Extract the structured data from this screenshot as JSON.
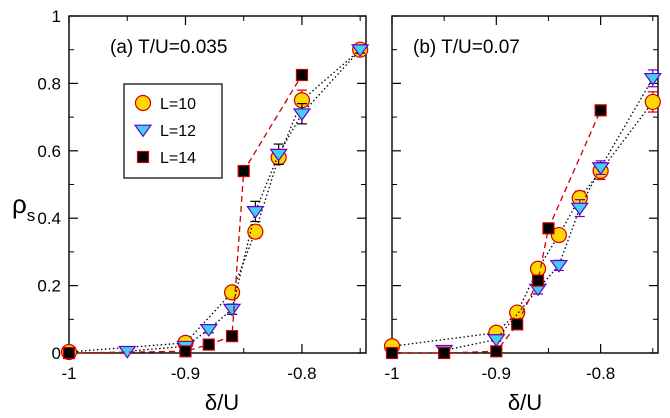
{
  "chart_data": [
    {
      "type": "scatter",
      "title": "(a) T/U=0.035",
      "xlabel": "δ/U",
      "ylabel": "ρs",
      "xlim": [
        -1.0,
        -0.745
      ],
      "ylim": [
        0,
        1
      ],
      "xticks": [
        "-1",
        "-0.9",
        "-0.8"
      ],
      "yticks": [
        "0",
        "0.2",
        "0.4",
        "0.6",
        "0.8",
        "1"
      ],
      "legend_position": "upper-left",
      "series": [
        {
          "name": "L=10",
          "marker": "circle",
          "color": "#ffd700",
          "edge": "#cc0000",
          "line": "dotted",
          "line_color": "#000000",
          "errbar_color": "#cc0000",
          "x": [
            -1.0,
            -0.9,
            -0.86,
            -0.84,
            -0.82,
            -0.8,
            -0.75
          ],
          "y": [
            0.003,
            0.03,
            0.18,
            0.36,
            0.58,
            0.75,
            0.9
          ],
          "err": [
            0,
            0.005,
            0.015,
            0.02,
            0.02,
            0.03,
            0.01
          ]
        },
        {
          "name": "L=12",
          "marker": "triangle-down",
          "color": "#40d0f0",
          "edge": "#6600cc",
          "line": "dotted",
          "line_color": "#000000",
          "errbar_color": "#000000",
          "x": [
            -0.95,
            -0.9,
            -0.88,
            -0.86,
            -0.84,
            -0.82,
            -0.8,
            -0.75
          ],
          "y": [
            0.005,
            0.02,
            0.07,
            0.13,
            0.42,
            0.59,
            0.71,
            0.9
          ],
          "err": [
            0,
            0.005,
            0.01,
            0.015,
            0.03,
            0.03,
            0.03,
            0.01
          ]
        },
        {
          "name": "L=14",
          "marker": "square",
          "color": "#000000",
          "edge": "#cc0000",
          "line": "dashed",
          "line_color": "#cc0000",
          "errbar_color": "#cc0000",
          "x": [
            -1.0,
            -0.9,
            -0.88,
            -0.86,
            -0.85,
            -0.8
          ],
          "y": [
            0.0,
            0.005,
            0.025,
            0.05,
            0.54,
            0.825
          ],
          "err": [
            0,
            0,
            0,
            0,
            0,
            0
          ]
        }
      ]
    },
    {
      "type": "scatter",
      "title": "(b) T/U=0.07",
      "xlabel": "δ/U",
      "ylabel": "",
      "xlim": [
        -1.0,
        -0.745
      ],
      "ylim": [
        0,
        1
      ],
      "xticks": [
        "-1",
        "-0.9",
        "-0.8"
      ],
      "yticks": [],
      "legend_position": "none",
      "series": [
        {
          "name": "L=10",
          "marker": "circle",
          "color": "#ffd700",
          "edge": "#cc0000",
          "line": "dotted",
          "line_color": "#000000",
          "errbar_color": "#cc0000",
          "x": [
            -1.0,
            -0.9,
            -0.88,
            -0.86,
            -0.84,
            -0.82,
            -0.8,
            -0.75
          ],
          "y": [
            0.02,
            0.06,
            0.12,
            0.25,
            0.35,
            0.46,
            0.54,
            0.745
          ],
          "err": [
            0,
            0.005,
            0.01,
            0.015,
            0.015,
            0.02,
            0.025,
            0.03
          ]
        },
        {
          "name": "L=12",
          "marker": "triangle-down",
          "color": "#40d0f0",
          "edge": "#6600cc",
          "line": "dotted",
          "line_color": "#000000",
          "errbar_color": "#6600cc",
          "x": [
            -0.95,
            -0.9,
            -0.86,
            -0.84,
            -0.82,
            -0.8,
            -0.75
          ],
          "y": [
            0.008,
            0.04,
            0.19,
            0.26,
            0.43,
            0.55,
            0.815
          ],
          "err": [
            0,
            0.005,
            0.015,
            0.015,
            0.025,
            0.02,
            0.025
          ]
        },
        {
          "name": "L=14",
          "marker": "square",
          "color": "#000000",
          "edge": "#cc0000",
          "line": "dashed",
          "line_color": "#cc0000",
          "errbar_color": "#cc0000",
          "x": [
            -1.0,
            -0.95,
            -0.9,
            -0.88,
            -0.86,
            -0.85,
            -0.8
          ],
          "y": [
            0.0,
            0.0,
            0.005,
            0.085,
            0.215,
            0.37,
            0.72
          ],
          "err": [
            0,
            0,
            0,
            0,
            0,
            0,
            0
          ]
        }
      ]
    }
  ]
}
